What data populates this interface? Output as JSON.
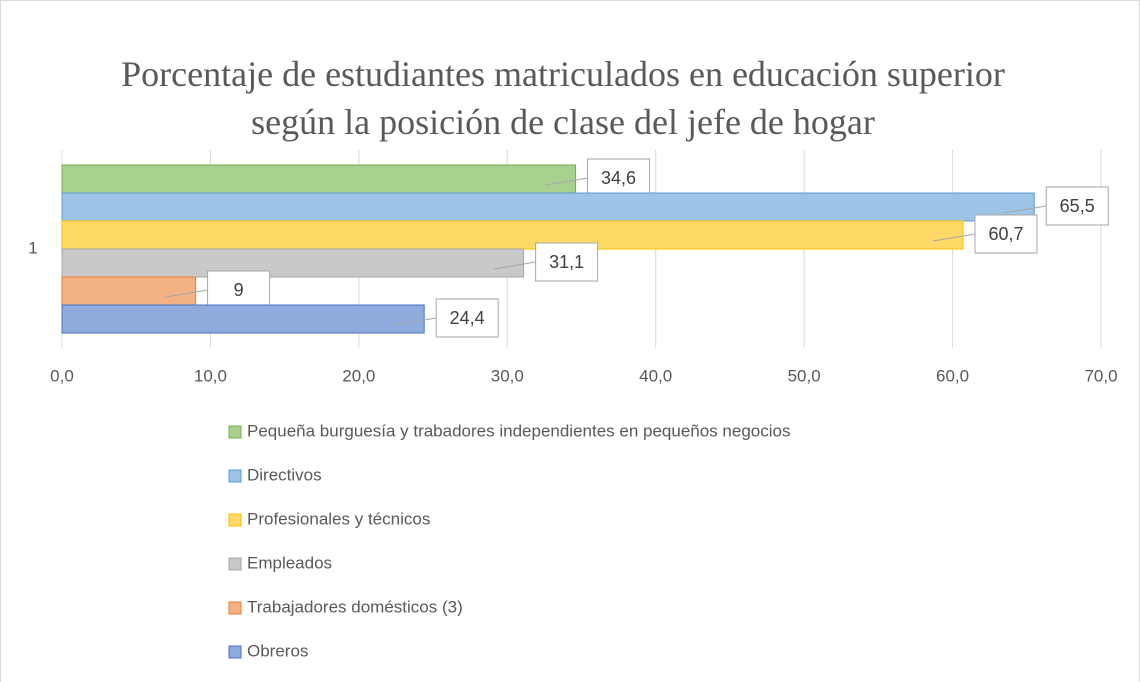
{
  "chart_data": {
    "type": "bar",
    "orientation": "horizontal",
    "title": "Porcentaje de estudiantes matriculados en educación superior según la posición de clase del jefe de hogar",
    "categories": [
      "1"
    ],
    "series": [
      {
        "name": "Pequeña burguesía y trabadores independientes en pequeños negocios",
        "color": "#a9d18e",
        "border": "#70ad47",
        "values": [
          34.6
        ],
        "value_labels": [
          "34,6"
        ]
      },
      {
        "name": "Directivos",
        "color": "#9dc3e6",
        "border": "#5b9bd5",
        "values": [
          65.5
        ],
        "value_labels": [
          "65,5"
        ]
      },
      {
        "name": "Profesionales y técnicos",
        "color": "#ffd966",
        "border": "#ffc000",
        "values": [
          60.7
        ],
        "value_labels": [
          "60,7"
        ]
      },
      {
        "name": "Empleados",
        "color": "#c9c9c9",
        "border": "#a5a5a5",
        "values": [
          31.1
        ],
        "value_labels": [
          "31,1"
        ]
      },
      {
        "name": "Trabajadores domésticos (3)",
        "color": "#f4b183",
        "border": "#ed7d31",
        "values": [
          9
        ],
        "value_labels": [
          "9"
        ]
      },
      {
        "name": "Obreros",
        "color": "#8faadc",
        "border": "#4472c4",
        "values": [
          24.4
        ],
        "value_labels": [
          "24,4"
        ]
      }
    ],
    "xlim": [
      0,
      70
    ],
    "xticks": [
      {
        "value": 0,
        "label": "0,0"
      },
      {
        "value": 10,
        "label": "10,0"
      },
      {
        "value": 20,
        "label": "20,0"
      },
      {
        "value": 30,
        "label": "30,0"
      },
      {
        "value": 40,
        "label": "40,0"
      },
      {
        "value": 50,
        "label": "50,0"
      },
      {
        "value": 60,
        "label": "60,0"
      },
      {
        "value": 70,
        "label": "70,0"
      }
    ],
    "grid": true,
    "legend": "bottom"
  }
}
